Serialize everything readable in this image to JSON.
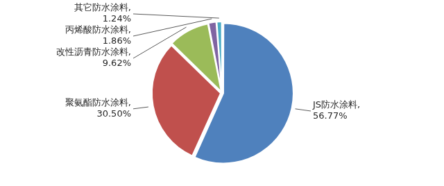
{
  "chart_data": {
    "type": "pie",
    "categories": [
      "JS防水涂料,",
      "聚氨酯防水涂料,",
      "改性沥青防水涂料,",
      "丙烯酸防水涂料,",
      "其它防水涂料,"
    ],
    "values": [
      56.77,
      30.5,
      9.62,
      1.86,
      1.24
    ],
    "value_labels": [
      "56.77%",
      "30.50%",
      "9.62%",
      "1.86%",
      "1.24%"
    ],
    "colors": [
      "#4f81bd",
      "#c0504d",
      "#9bbb59",
      "#8064a2",
      "#4bacc6"
    ],
    "data_labels": true
  }
}
